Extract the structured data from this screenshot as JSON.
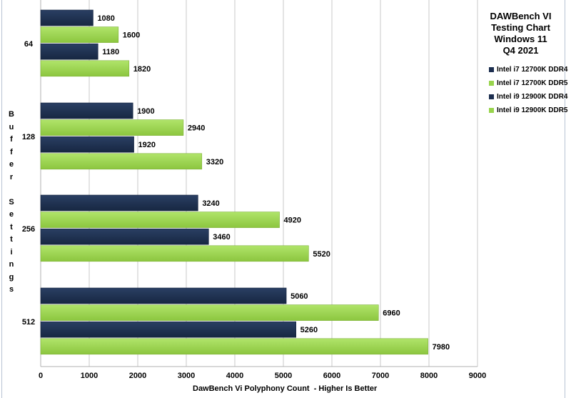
{
  "chart_data": {
    "type": "bar",
    "orientation": "horizontal",
    "title_lines": [
      "DAWBench VI",
      "Testing Chart",
      "Windows 11",
      "Q4 2021"
    ],
    "xlabel": "DawBench Vi Polyphony Count  - Higher Is Better",
    "ylabel": "Buffer Settings",
    "xlim": [
      0,
      9000
    ],
    "xticks": [
      "0",
      "1000",
      "2000",
      "3000",
      "4000",
      "5000",
      "6000",
      "7000",
      "8000",
      "9000"
    ],
    "xtick_values": [
      0,
      1000,
      2000,
      3000,
      4000,
      5000,
      6000,
      7000,
      8000,
      9000
    ],
    "grid": true,
    "legend_position": "right",
    "categories": [
      "64",
      "128",
      "256",
      "512"
    ],
    "series": [
      {
        "name": "Intel i7 12700K DDR4",
        "color": "#1c2e4f",
        "values": [
          1080,
          1900,
          3240,
          5060
        ]
      },
      {
        "name": "Intel i7 12700K DDR5",
        "color": "#98d44c",
        "values": [
          1600,
          2940,
          4920,
          6960
        ]
      },
      {
        "name": "Intel i9 12900K DDR4",
        "color": "#1c2e4f",
        "values": [
          1180,
          1920,
          3460,
          5260
        ]
      },
      {
        "name": "Intel i9 12900K DDR5",
        "color": "#98d44c",
        "values": [
          1820,
          3320,
          5520,
          7980
        ]
      }
    ]
  }
}
